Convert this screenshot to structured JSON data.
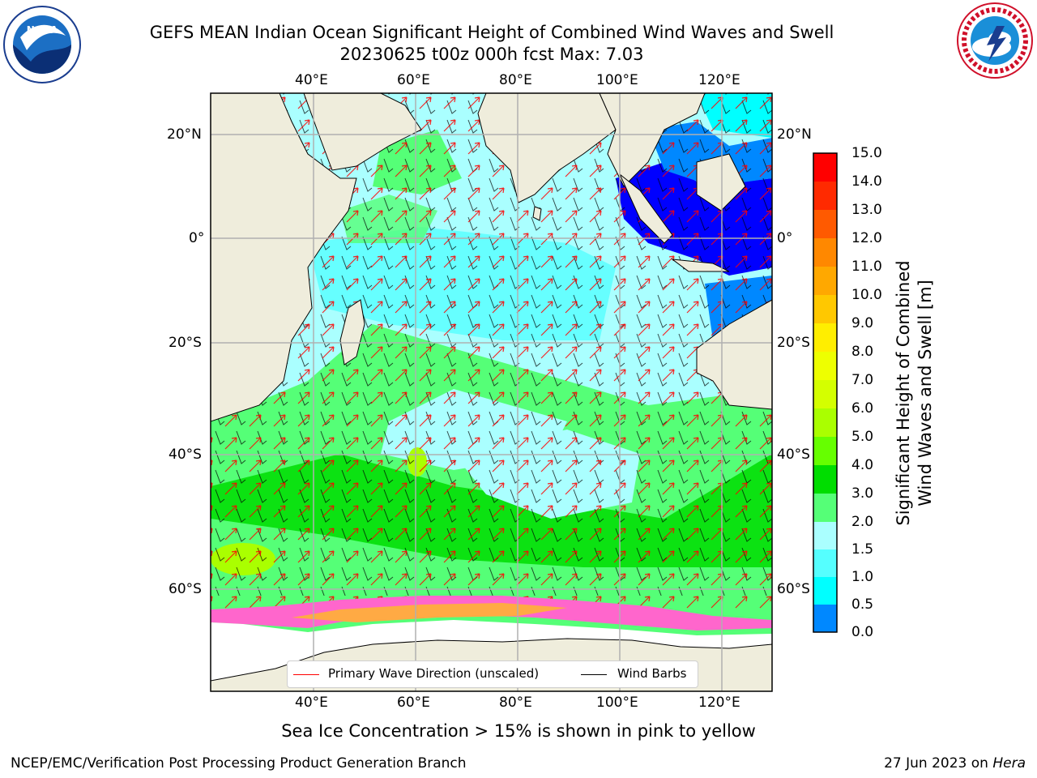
{
  "title_line1": "GEFS MEAN Indian Ocean Significant Height of Combined Wind Waves and Swell",
  "title_line2": "20230625 t00z 000h fcst   Max: 7.03",
  "logos": {
    "left": "noaa-logo",
    "right": "nws-logo"
  },
  "map": {
    "lon_ticks_top": [
      "40°E",
      "60°E",
      "80°E",
      "100°E",
      "120°E"
    ],
    "lon_ticks_bottom": [
      "40°E",
      "60°E",
      "80°E",
      "100°E",
      "120°E"
    ],
    "lat_ticks_left": [
      "20°N",
      "0°",
      "20°S",
      "40°S",
      "60°S"
    ],
    "lat_ticks_right": [
      "20°N",
      "0°",
      "20°S",
      "40°S",
      "60°S"
    ],
    "colors": {
      "land": "#efeddc",
      "ocean_low": "#aaffff",
      "ocean_mid": "#55ff77",
      "ocean_high": "#00dd00",
      "wave_arrow": "#ff0000",
      "wind_barb": "#000000"
    }
  },
  "colorbar": {
    "label_line1": "Significant Height of Combined",
    "label_line2": "Wind Waves and Swell [m]",
    "ticks": [
      "15.0",
      "14.0",
      "13.0",
      "12.0",
      "11.0",
      "10.0",
      "9.0",
      "8.0",
      "7.0",
      "6.0",
      "5.0",
      "4.0",
      "3.0",
      "2.0",
      "1.5",
      "1.0",
      "0.5",
      "0.0"
    ],
    "colors": [
      "#ff0000",
      "#ff2a00",
      "#ff5a00",
      "#ff8800",
      "#ffa800",
      "#ffc800",
      "#ffee00",
      "#eeff00",
      "#d4ff00",
      "#aaff00",
      "#66ff00",
      "#00dd00",
      "#55ff77",
      "#aaffff",
      "#55ffff",
      "#00ffff",
      "#0088ff",
      "#0000ff"
    ]
  },
  "legend": {
    "wave_label": "Primary Wave Direction (unscaled)",
    "wind_label": "Wind Barbs"
  },
  "sea_ice_note": "Sea Ice Concentration > 15% is shown in pink to yellow",
  "footer_left": "NCEP/EMC/Verification Post Processing Product Generation Branch",
  "footer_right_prefix": "27 Jun 2023 on ",
  "footer_right_host": "Hera"
}
